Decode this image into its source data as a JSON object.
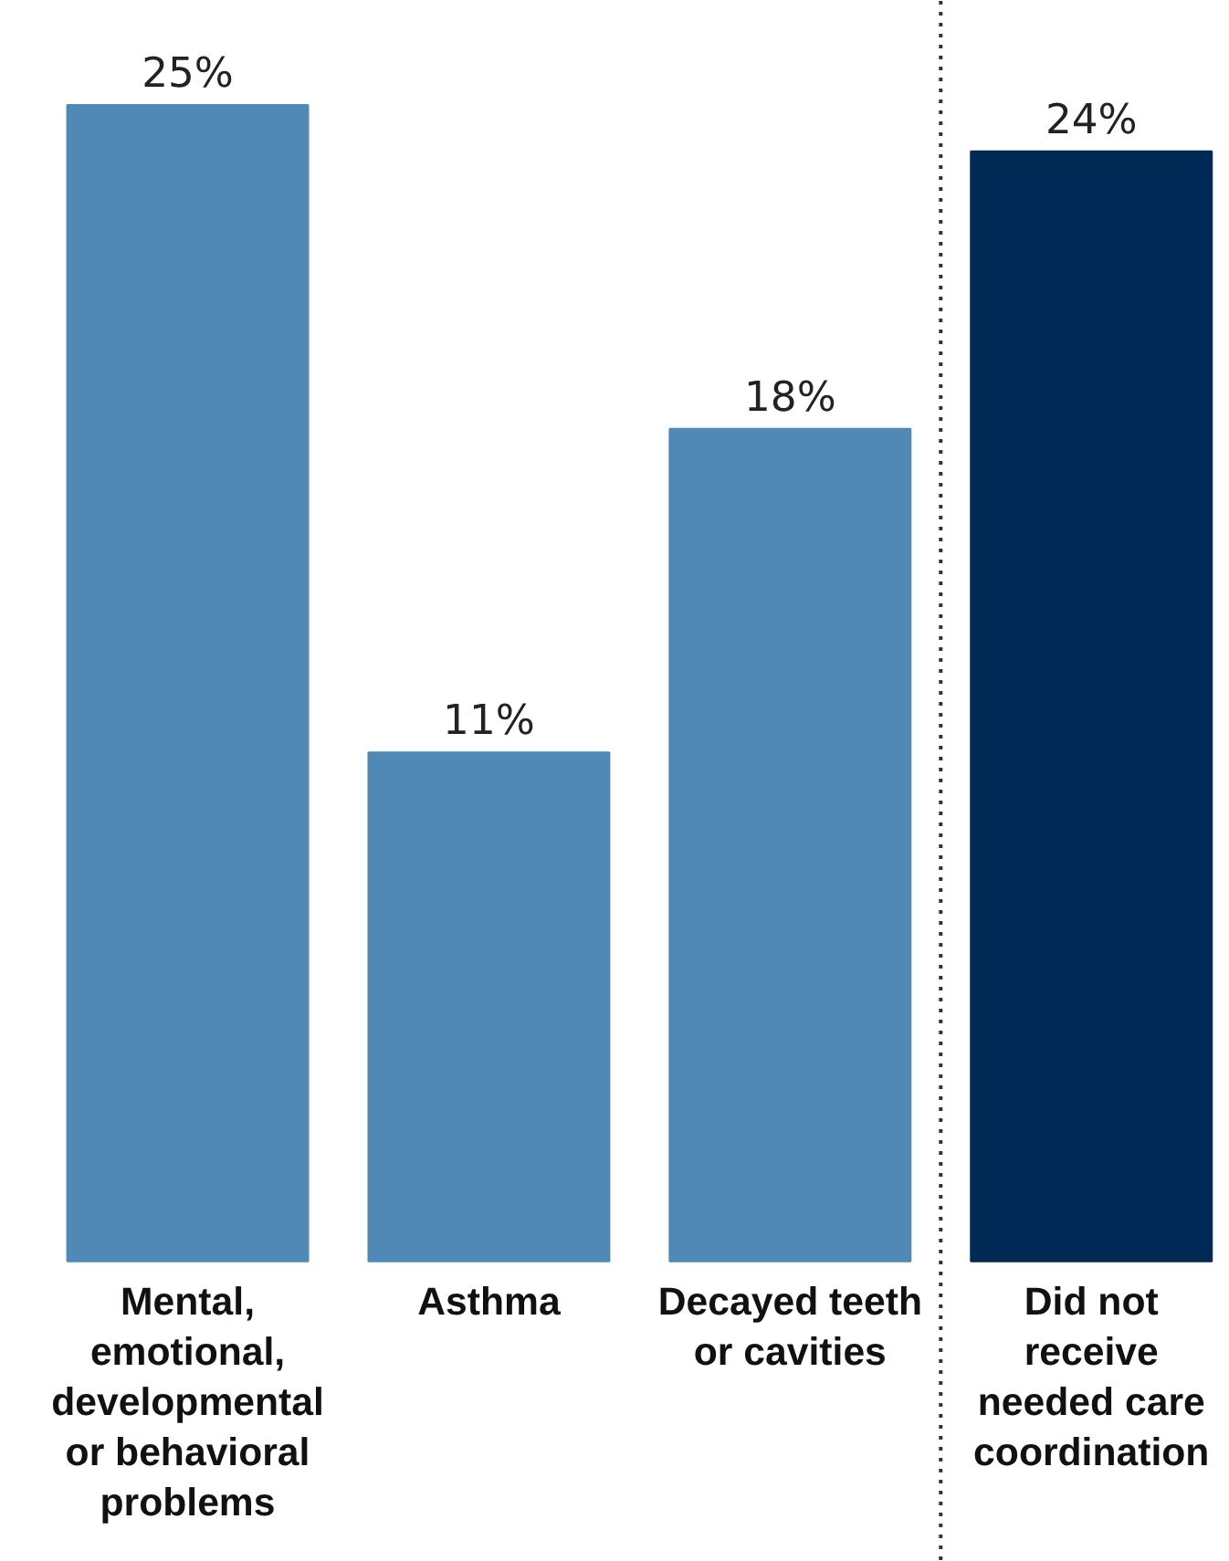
{
  "chart_data": {
    "type": "bar",
    "categories": [
      "Mental, emotional, developmental or behavioral problems",
      "Asthma",
      "Decayed teeth or cavities",
      "Did not receive needed care coordination"
    ],
    "values": [
      25,
      11,
      18,
      24
    ],
    "colors": [
      "#5088b6",
      "#5088b6",
      "#5088b6",
      "#002a55"
    ],
    "value_labels": [
      "25%",
      "11%",
      "18%",
      "24%"
    ],
    "grid": false
  }
}
